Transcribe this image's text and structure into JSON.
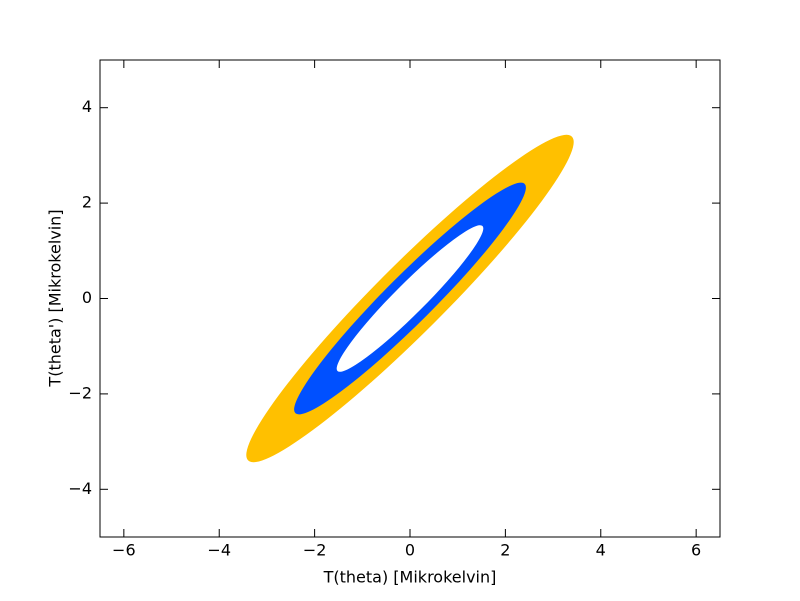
{
  "chart_data": {
    "type": "contour",
    "xlabel": "T(theta) [Mikrokelvin]",
    "ylabel": "T(theta') [Mikrokelvin]",
    "xlim": [
      -6.5,
      6.5
    ],
    "ylim": [
      -5,
      5
    ],
    "xticks": [
      {
        "value": -6,
        "label": "−6"
      },
      {
        "value": -4,
        "label": "−4"
      },
      {
        "value": -2,
        "label": "−2"
      },
      0,
      2,
      4,
      6
    ],
    "yticks": [
      {
        "value": -4,
        "label": "−4"
      },
      {
        "value": -2,
        "label": "−2"
      },
      0,
      2,
      4
    ],
    "ellipses": [
      {
        "color": "#ffc000",
        "cx": 0,
        "cy": 0,
        "rx": 4.8,
        "ry": 0.72,
        "angle": 45
      },
      {
        "color": "#0050ff",
        "cx": 0,
        "cy": 0,
        "rx": 3.4,
        "ry": 0.5,
        "angle": 45
      },
      {
        "color": "#ffffff",
        "cx": 0,
        "cy": 0,
        "rx": 2.15,
        "ry": 0.32,
        "angle": 45
      }
    ]
  }
}
